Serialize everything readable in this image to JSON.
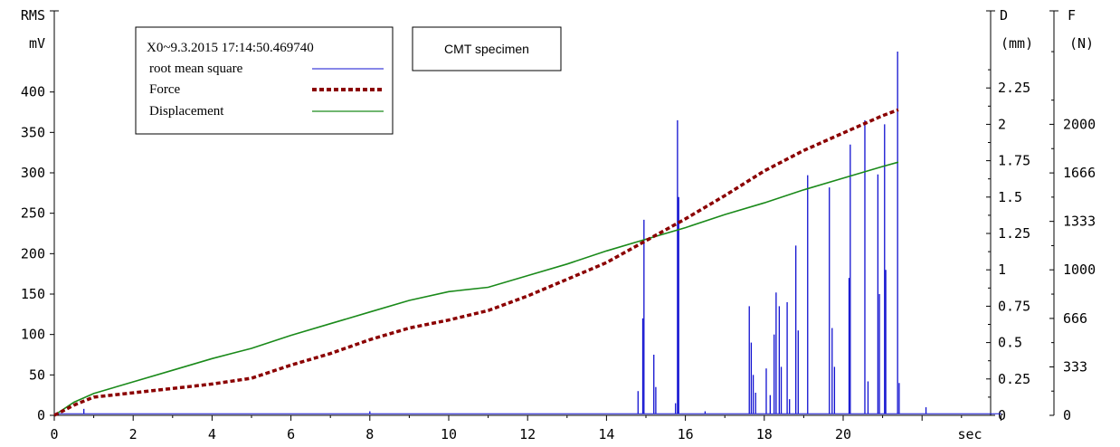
{
  "chart_data": {
    "type": "line",
    "x_unit": "sec",
    "xlim": [
      0,
      24
    ],
    "x_ticks": [
      "0",
      "2",
      "4",
      "6",
      "8",
      "10",
      "12",
      "14",
      "16",
      "18",
      "20"
    ],
    "axes": {
      "left": {
        "label_line1": "RMS",
        "label_line2": "mV",
        "ylim": [
          0,
          450
        ],
        "ticks": [
          "0",
          "50",
          "100",
          "150",
          "200",
          "250",
          "300",
          "350",
          "400"
        ]
      },
      "right1": {
        "label_line1": "D",
        "label_line2": "(mm)",
        "ylim": [
          0,
          2.5
        ],
        "ticks": [
          "0",
          "0.25",
          "0.5",
          "0.75",
          "1",
          "1.25",
          "1.5",
          "1.75",
          "2",
          "2.25"
        ]
      },
      "right2": {
        "label_line1": "F",
        "label_line2": "(N)",
        "ylim": [
          0,
          2500
        ],
        "ticks": [
          "0",
          "333",
          "666",
          "1000",
          "1333",
          "1666",
          "2000"
        ]
      }
    },
    "legend": {
      "title": "X0~9.3.2015 17:14:50.469740",
      "entries": [
        {
          "label": "root mean square",
          "color": "#1010d0",
          "style": "solid"
        },
        {
          "label": "Force",
          "color": "#8b0000",
          "style": "dashed"
        },
        {
          "label": "Displacement",
          "color": "#1a8a1a",
          "style": "solid"
        }
      ]
    },
    "annotation": "CMT specimen",
    "series": [
      {
        "name": "Force",
        "axis": "right2",
        "unit": "N",
        "x": [
          0,
          0.5,
          1,
          2,
          3,
          4,
          5,
          6,
          7,
          8,
          9,
          10,
          11,
          12,
          13,
          14,
          15,
          16,
          17,
          18,
          19,
          20,
          21,
          21.4
        ],
        "y": [
          0,
          70,
          125,
          155,
          185,
          215,
          255,
          345,
          425,
          520,
          600,
          655,
          720,
          820,
          935,
          1050,
          1200,
          1350,
          1510,
          1680,
          1820,
          1940,
          2060,
          2100
        ]
      },
      {
        "name": "Displacement",
        "axis": "right1",
        "unit": "mm",
        "x": [
          0,
          0.5,
          1,
          2,
          3,
          4,
          5,
          6,
          7,
          8,
          9,
          10,
          11,
          12,
          13,
          14,
          15,
          16,
          17,
          18,
          19,
          20,
          21,
          21.4
        ],
        "y": [
          0,
          0.09,
          0.15,
          0.23,
          0.31,
          0.39,
          0.46,
          0.55,
          0.63,
          0.71,
          0.79,
          0.85,
          0.88,
          0.96,
          1.04,
          1.13,
          1.21,
          1.29,
          1.38,
          1.46,
          1.55,
          1.63,
          1.71,
          1.74
        ]
      },
      {
        "name": "root mean square",
        "axis": "left",
        "unit": "mV",
        "baseline": 2,
        "spikes": [
          {
            "x": 0.75,
            "y": 8
          },
          {
            "x": 8,
            "y": 5
          },
          {
            "x": 14.8,
            "y": 30
          },
          {
            "x": 14.92,
            "y": 120
          },
          {
            "x": 14.95,
            "y": 242
          },
          {
            "x": 15.2,
            "y": 75
          },
          {
            "x": 15.25,
            "y": 35
          },
          {
            "x": 15.75,
            "y": 15
          },
          {
            "x": 15.8,
            "y": 365
          },
          {
            "x": 15.83,
            "y": 270
          },
          {
            "x": 16.5,
            "y": 5
          },
          {
            "x": 17.62,
            "y": 135
          },
          {
            "x": 17.67,
            "y": 90
          },
          {
            "x": 17.72,
            "y": 50
          },
          {
            "x": 17.78,
            "y": 28
          },
          {
            "x": 18.05,
            "y": 58
          },
          {
            "x": 18.15,
            "y": 25
          },
          {
            "x": 18.25,
            "y": 100
          },
          {
            "x": 18.3,
            "y": 152
          },
          {
            "x": 18.38,
            "y": 135
          },
          {
            "x": 18.43,
            "y": 60
          },
          {
            "x": 18.58,
            "y": 140
          },
          {
            "x": 18.64,
            "y": 20
          },
          {
            "x": 18.8,
            "y": 210
          },
          {
            "x": 18.86,
            "y": 105
          },
          {
            "x": 19.1,
            "y": 297
          },
          {
            "x": 19.65,
            "y": 282
          },
          {
            "x": 19.72,
            "y": 108
          },
          {
            "x": 19.78,
            "y": 60
          },
          {
            "x": 20.15,
            "y": 170
          },
          {
            "x": 20.18,
            "y": 335
          },
          {
            "x": 20.55,
            "y": 365
          },
          {
            "x": 20.63,
            "y": 42
          },
          {
            "x": 20.88,
            "y": 298
          },
          {
            "x": 20.92,
            "y": 150
          },
          {
            "x": 21.05,
            "y": 360
          },
          {
            "x": 21.08,
            "y": 180
          },
          {
            "x": 21.38,
            "y": 450
          },
          {
            "x": 21.42,
            "y": 40
          },
          {
            "x": 22.1,
            "y": 10
          }
        ]
      }
    ]
  }
}
